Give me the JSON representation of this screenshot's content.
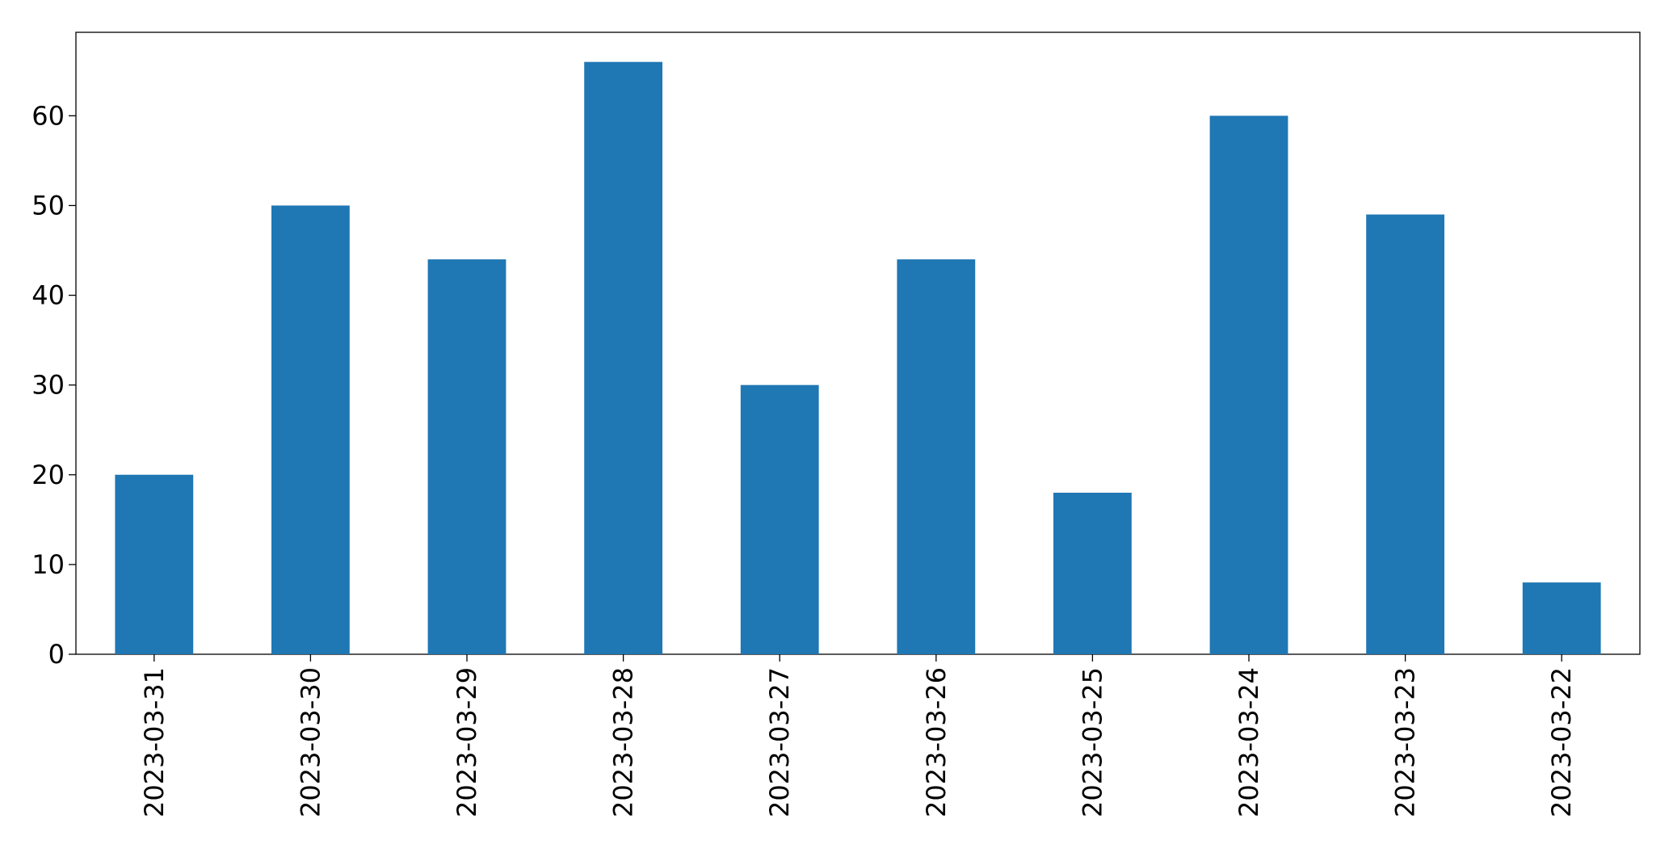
{
  "chart_data": {
    "type": "bar",
    "categories": [
      "2023-03-31",
      "2023-03-30",
      "2023-03-29",
      "2023-03-28",
      "2023-03-27",
      "2023-03-26",
      "2023-03-25",
      "2023-03-24",
      "2023-03-23",
      "2023-03-22"
    ],
    "values": [
      20,
      50,
      44,
      66,
      30,
      44,
      18,
      60,
      49,
      8
    ],
    "color": "#1f77b4",
    "ylim": [
      0,
      69.3
    ],
    "yticks": [
      0,
      10,
      20,
      30,
      40,
      50,
      60
    ],
    "grid": false
  }
}
